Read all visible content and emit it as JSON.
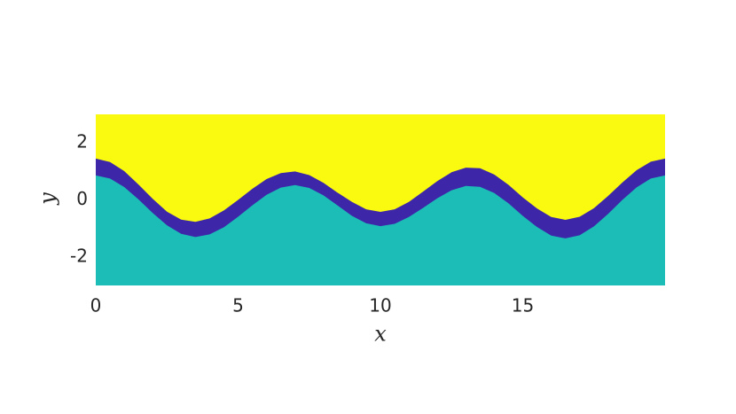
{
  "chart_data": {
    "type": "area",
    "xlabel": "x",
    "ylabel": "y",
    "x": [
      0,
      0.5,
      1,
      1.5,
      2,
      2.5,
      3,
      3.5,
      4,
      4.5,
      5,
      5.5,
      6,
      6.5,
      7,
      7.5,
      8,
      8.5,
      9,
      9.5,
      10,
      10.5,
      11,
      11.5,
      12,
      12.5,
      13,
      13.5,
      14,
      14.5,
      15,
      15.5,
      16,
      16.5,
      17,
      17.5,
      18,
      18.5,
      19,
      19.5,
      20
    ],
    "plot_background": "#f9fa0f",
    "series": [
      {
        "color": "#3e26a8",
        "values": [
          1.45,
          1.33,
          1.01,
          0.54,
          0.04,
          -0.41,
          -0.69,
          -0.77,
          -0.65,
          -0.37,
          0,
          0.39,
          0.73,
          0.94,
          1.0,
          0.87,
          0.6,
          0.25,
          -0.07,
          -0.33,
          -0.42,
          -0.33,
          -0.07,
          0.29,
          0.66,
          0.97,
          1.13,
          1.11,
          0.89,
          0.53,
          0.09,
          -0.3,
          -0.6,
          -0.7,
          -0.59,
          -0.29,
          0.14,
          0.61,
          1.04,
          1.34,
          1.45
        ]
      },
      {
        "color": "#1cbdb6",
        "values": [
          0.86,
          0.75,
          0.45,
          0.02,
          -0.46,
          -0.89,
          -1.19,
          -1.3,
          -1.21,
          -0.96,
          -0.59,
          -0.19,
          0.18,
          0.43,
          0.52,
          0.42,
          0.16,
          -0.2,
          -0.56,
          -0.82,
          -0.92,
          -0.84,
          -0.6,
          -0.28,
          0.06,
          0.34,
          0.49,
          0.46,
          0.24,
          -0.12,
          -0.56,
          -0.95,
          -1.25,
          -1.35,
          -1.24,
          -0.93,
          -0.49,
          0,
          0.44,
          0.75,
          0.86
        ]
      }
    ],
    "xlim": [
      0,
      20
    ],
    "ylim": [
      -3,
      3
    ],
    "xticks": [
      0,
      5,
      10,
      15
    ],
    "yticks": [
      -2,
      0,
      2
    ]
  }
}
